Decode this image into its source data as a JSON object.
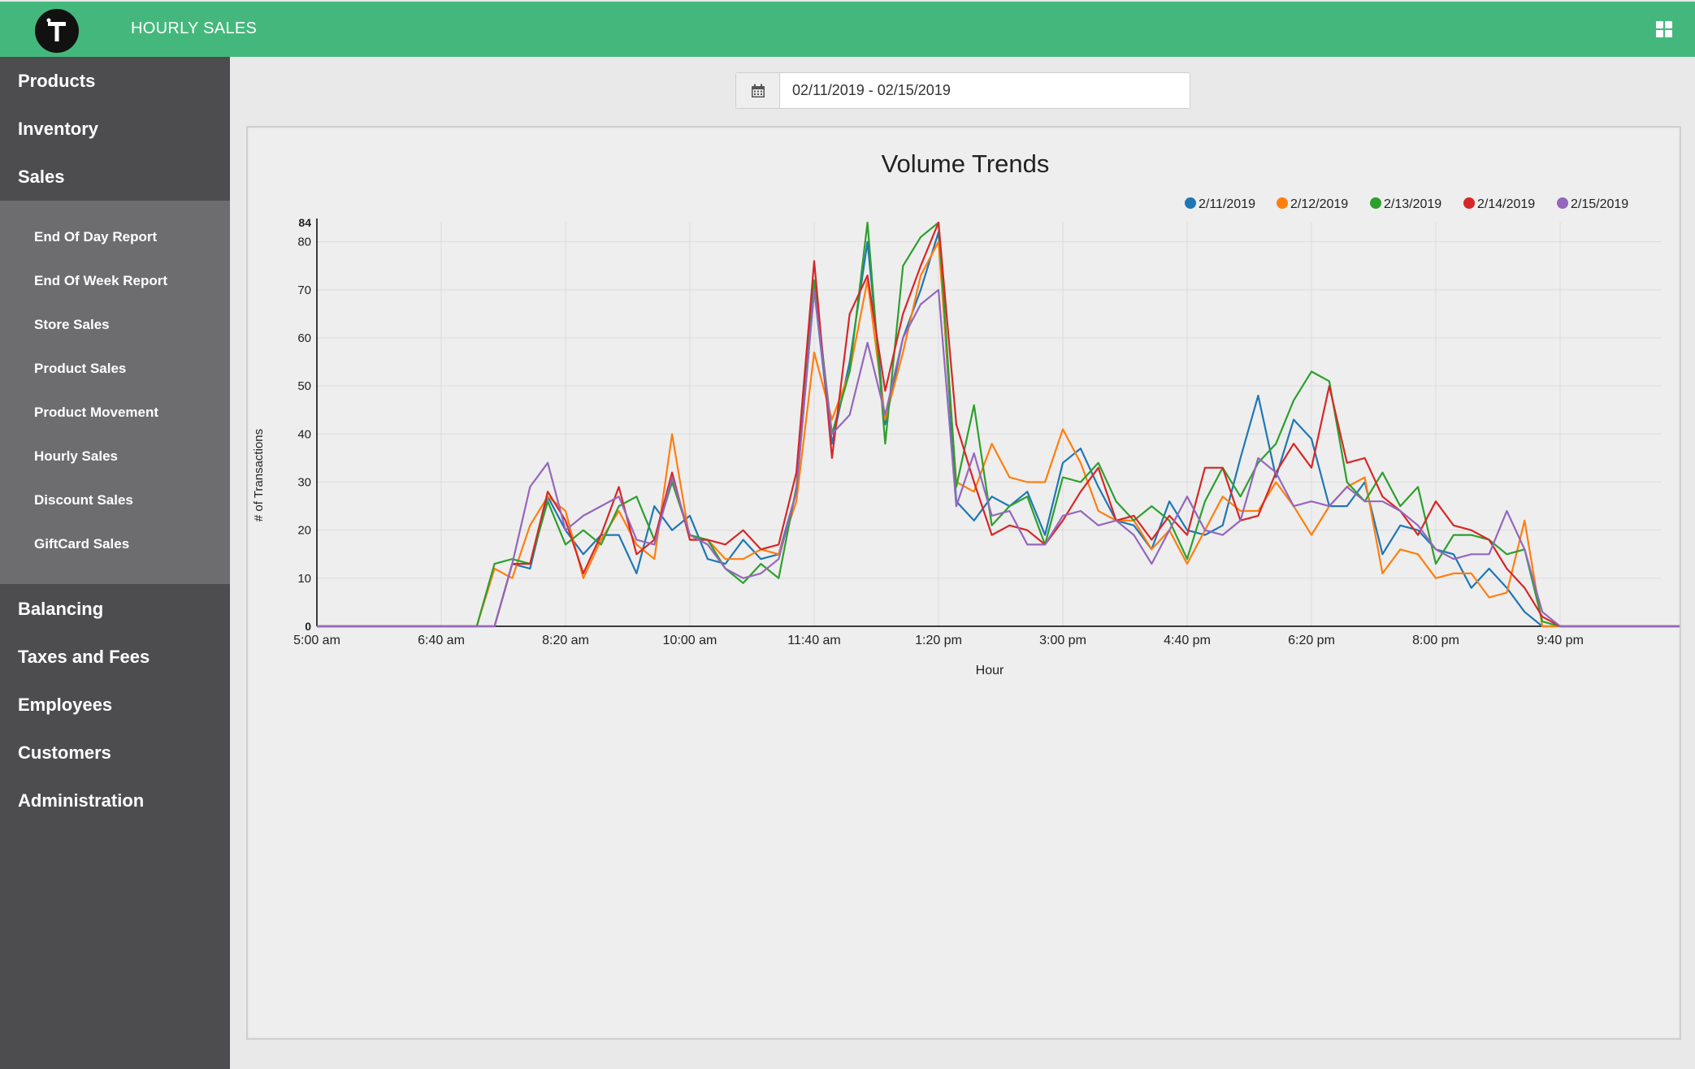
{
  "header": {
    "title": "HOURLY SALES",
    "logo_icon": "t-logo-icon",
    "apps_icon": "grid-icon",
    "color": "#44b87c"
  },
  "sidebar": {
    "items_top": [
      {
        "label": "Products"
      },
      {
        "label": "Inventory"
      },
      {
        "label": "Sales"
      }
    ],
    "sales_submenu": [
      {
        "label": "End Of Day Report"
      },
      {
        "label": "End Of Week Report"
      },
      {
        "label": "Store Sales"
      },
      {
        "label": "Product Sales"
      },
      {
        "label": "Product Movement"
      },
      {
        "label": "Hourly Sales"
      },
      {
        "label": "Discount Sales"
      },
      {
        "label": "GiftCard Sales"
      }
    ],
    "items_bottom": [
      {
        "label": "Balancing"
      },
      {
        "label": "Taxes and Fees"
      },
      {
        "label": "Employees"
      },
      {
        "label": "Customers"
      },
      {
        "label": "Administration"
      }
    ]
  },
  "date_range": {
    "icon": "calendar-icon",
    "value": "02/11/2019 - 02/15/2019"
  },
  "chart_data": {
    "type": "line",
    "title": "Volume Trends",
    "xlabel": "Hour",
    "ylabel": "# of Transactions",
    "x_ticks": [
      "5:00 am",
      "6:40 am",
      "8:20 am",
      "10:00 am",
      "11:40 am",
      "1:20 pm",
      "3:00 pm",
      "4:40 pm",
      "6:20 pm",
      "8:00 pm",
      "9:40 pm"
    ],
    "y_ticks": [
      0,
      10,
      20,
      30,
      40,
      50,
      60,
      70,
      80
    ],
    "ylim": [
      0,
      84
    ],
    "y_max_label": "84",
    "y_min_label": "0",
    "x_start": "5:00 am",
    "x_interval_minutes": 15,
    "grid": true,
    "legend_position": "top-right",
    "series": [
      {
        "name": "2/11/2019",
        "color": "#1f77b4",
        "values": [
          0,
          0,
          0,
          0,
          0,
          0,
          0,
          0,
          0,
          0,
          0,
          13,
          12,
          27,
          20,
          15,
          19,
          19,
          11,
          25,
          20,
          23,
          14,
          13,
          18,
          14,
          15,
          28,
          70,
          38,
          55,
          80,
          42,
          60,
          70,
          82,
          26,
          22,
          27,
          25,
          28,
          19,
          34,
          37,
          29,
          22,
          21,
          16,
          26,
          20,
          19,
          21,
          35,
          48,
          31,
          43,
          39,
          25,
          25,
          30,
          15,
          21,
          20,
          16,
          15,
          8,
          12,
          8,
          3,
          0,
          0,
          0,
          0,
          0,
          0,
          0,
          0,
          0,
          0
        ]
      },
      {
        "name": "2/12/2019",
        "color": "#ff7f0e",
        "values": [
          0,
          0,
          0,
          0,
          0,
          0,
          0,
          0,
          0,
          0,
          12,
          10,
          21,
          27,
          24,
          10,
          18,
          24,
          17,
          14,
          40,
          18,
          18,
          14,
          14,
          16,
          15,
          26,
          57,
          43,
          53,
          72,
          43,
          57,
          73,
          80,
          30,
          28,
          38,
          31,
          30,
          30,
          41,
          34,
          24,
          22,
          22,
          16,
          20,
          13,
          20,
          27,
          24,
          24,
          30,
          25,
          19,
          25,
          29,
          31,
          11,
          16,
          15,
          10,
          11,
          11,
          6,
          7,
          22,
          0,
          0,
          0,
          0,
          0,
          0,
          0,
          0,
          0,
          0
        ]
      },
      {
        "name": "2/13/2019",
        "color": "#2ca02c",
        "values": [
          0,
          0,
          0,
          0,
          0,
          0,
          0,
          0,
          0,
          0,
          13,
          14,
          13,
          26,
          17,
          20,
          17,
          25,
          27,
          18,
          30,
          19,
          18,
          12,
          9,
          13,
          10,
          29,
          72,
          40,
          53,
          84,
          38,
          75,
          81,
          84,
          29,
          46,
          21,
          25,
          27,
          17,
          31,
          30,
          34,
          26,
          22,
          25,
          22,
          14,
          26,
          33,
          27,
          34,
          38,
          47,
          53,
          51,
          30,
          26,
          32,
          25,
          29,
          13,
          19,
          19,
          18,
          15,
          16,
          1,
          0,
          0,
          0,
          0,
          0,
          0,
          0,
          0,
          0,
          0
        ]
      },
      {
        "name": "2/14/2019",
        "color": "#d62728",
        "values": [
          0,
          0,
          0,
          0,
          0,
          0,
          0,
          0,
          0,
          0,
          0,
          13,
          13,
          28,
          22,
          11,
          19,
          29,
          15,
          18,
          32,
          18,
          18,
          17,
          20,
          16,
          17,
          32,
          76,
          35,
          65,
          73,
          49,
          65,
          75,
          84,
          42,
          30,
          19,
          21,
          20,
          17,
          22,
          28,
          33,
          22,
          23,
          18,
          23,
          19,
          33,
          33,
          22,
          23,
          32,
          38,
          33,
          50,
          34,
          35,
          27,
          24,
          19,
          26,
          21,
          20,
          18,
          12,
          8,
          2,
          0,
          0,
          0,
          0,
          0,
          0,
          0,
          0,
          0,
          0
        ]
      },
      {
        "name": "2/15/2019",
        "color": "#9467bd",
        "values": [
          0,
          0,
          0,
          0,
          0,
          0,
          0,
          0,
          0,
          0,
          0,
          13,
          29,
          34,
          20,
          23,
          25,
          27,
          18,
          17,
          31,
          19,
          17,
          12,
          10,
          11,
          14,
          28,
          70,
          40,
          44,
          59,
          44,
          60,
          67,
          70,
          25,
          36,
          23,
          24,
          17,
          17,
          23,
          24,
          21,
          22,
          19,
          13,
          20,
          27,
          20,
          19,
          22,
          35,
          32,
          25,
          26,
          25,
          29,
          26,
          26,
          24,
          21,
          16,
          14,
          15,
          15,
          24,
          16,
          3,
          0,
          0,
          0,
          0,
          0,
          0,
          0,
          0,
          0,
          0
        ]
      }
    ]
  }
}
